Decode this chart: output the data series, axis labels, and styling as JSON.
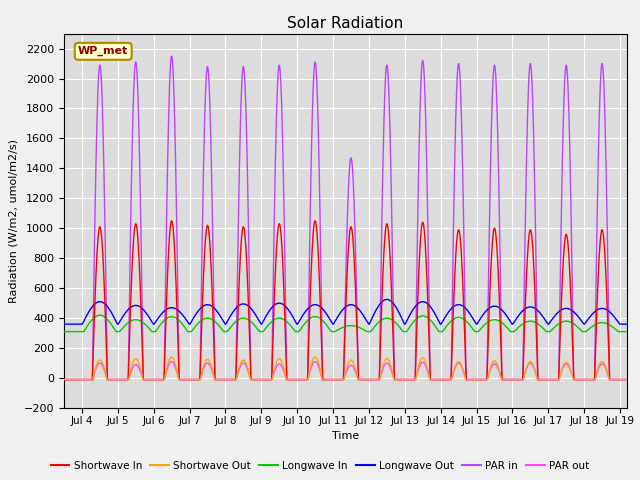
{
  "title": "Solar Radiation",
  "ylabel": "Radiation (W/m2, umol/m2/s)",
  "xlabel": "Time",
  "xlim_days": [
    3.5,
    19.2
  ],
  "ylim": [
    -200,
    2300
  ],
  "yticks": [
    -200,
    0,
    200,
    400,
    600,
    800,
    1000,
    1200,
    1400,
    1600,
    1800,
    2000,
    2200
  ],
  "xtick_labels": [
    "Jul 4",
    "Jul 5",
    "Jul 6",
    "Jul 7",
    "Jul 8",
    "Jul 9",
    "Jul 10",
    "Jul 11",
    "Jul 12",
    "Jul 13",
    "Jul 14",
    "Jul 15",
    "Jul 16",
    "Jul 17",
    "Jul 18",
    "Jul 19"
  ],
  "xtick_positions": [
    4,
    5,
    6,
    7,
    8,
    9,
    10,
    11,
    12,
    13,
    14,
    15,
    16,
    17,
    18,
    19
  ],
  "plot_bg_color": "#dcdcdc",
  "fig_bg_color": "#f0f0f0",
  "grid_color": "#ffffff",
  "annotation_text": "WP_met",
  "annotation_bg": "#ffffcc",
  "annotation_border": "#aa8800",
  "series": {
    "shortwave_in": {
      "color": "#ff0000",
      "label": "Shortwave In"
    },
    "shortwave_out": {
      "color": "#ffa500",
      "label": "Shortwave Out"
    },
    "longwave_in": {
      "color": "#00cc00",
      "label": "Longwave In"
    },
    "longwave_out": {
      "color": "#0000ff",
      "label": "Longwave Out"
    },
    "par_in": {
      "color": "#bb44ff",
      "label": "PAR in"
    },
    "par_out": {
      "color": "#ff44ff",
      "label": "PAR out"
    }
  },
  "day_start": 4,
  "num_days": 15
}
